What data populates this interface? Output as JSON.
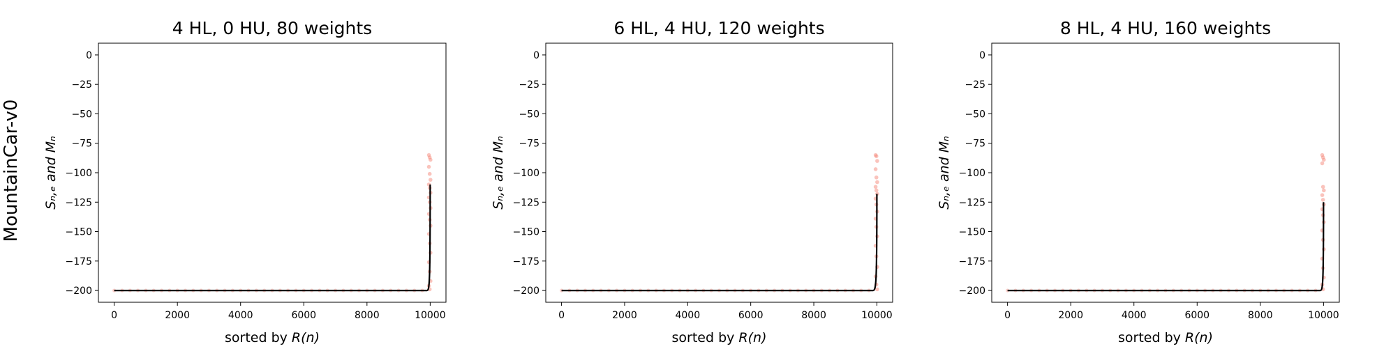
{
  "figure": {
    "row_label": "MountainCar-v0"
  },
  "chart_data": [
    {
      "type": "scatter",
      "title": "4 HL, 0 HU, 80 weights",
      "xlabel_prefix": "sorted by ",
      "xlabel_italic": "R(n)",
      "ylabel": "Sₙ,ₑ and Mₙ",
      "xlim": [
        -500,
        10500
      ],
      "ylim": [
        -210,
        10
      ],
      "xticks": [
        0,
        2000,
        4000,
        6000,
        8000,
        10000
      ],
      "yticks": [
        0,
        -25,
        -50,
        -75,
        -100,
        -125,
        -150,
        -175,
        -200
      ],
      "baseline": -200,
      "rise_start_x": 9900,
      "line_end": [
        10000,
        -110
      ],
      "outlier_values": [
        -85,
        -87,
        -89,
        -95,
        -101,
        -106,
        -110,
        -113,
        -117,
        -121,
        -125,
        -130,
        -135,
        -140,
        -145,
        -152,
        -160,
        -168,
        -176,
        -184,
        -192,
        -196,
        -199
      ],
      "colors": {
        "line": "#000000",
        "points": "#f4796b"
      }
    },
    {
      "type": "scatter",
      "title": "6 HL, 4 HU, 120 weights",
      "xlabel_prefix": "sorted by ",
      "xlabel_italic": "R(n)",
      "ylabel": "Sₙ,ₑ and Mₙ",
      "xlim": [
        -500,
        10500
      ],
      "ylim": [
        -210,
        10
      ],
      "xticks": [
        0,
        2000,
        4000,
        6000,
        8000,
        10000
      ],
      "yticks": [
        0,
        -25,
        -50,
        -75,
        -100,
        -125,
        -150,
        -175,
        -200
      ],
      "baseline": -200,
      "rise_start_x": 9880,
      "line_end": [
        10000,
        -118
      ],
      "outlier_values": [
        -85,
        -86,
        -90,
        -97,
        -104,
        -108,
        -112,
        -115,
        -118,
        -122,
        -127,
        -133,
        -139,
        -146,
        -154,
        -162,
        -171,
        -180,
        -188,
        -195,
        -199
      ],
      "colors": {
        "line": "#000000",
        "points": "#f4796b"
      }
    },
    {
      "type": "scatter",
      "title": "8 HL, 4 HU, 160 weights",
      "xlabel_prefix": "sorted by ",
      "xlabel_italic": "R(n)",
      "ylabel": "Sₙ,ₑ and Mₙ",
      "xlim": [
        -500,
        10500
      ],
      "ylim": [
        -210,
        10
      ],
      "xticks": [
        0,
        2000,
        4000,
        6000,
        8000,
        10000
      ],
      "yticks": [
        0,
        -25,
        -50,
        -75,
        -100,
        -125,
        -150,
        -175,
        -200
      ],
      "baseline": -200,
      "rise_start_x": 9900,
      "line_end": [
        10000,
        -125
      ],
      "outlier_values": [
        -85,
        -87,
        -89,
        -92,
        -112,
        -115,
        -119,
        -123,
        -127,
        -131,
        -136,
        -142,
        -149,
        -157,
        -165,
        -173,
        -181,
        -189,
        -195,
        -199
      ],
      "colors": {
        "line": "#000000",
        "points": "#f4796b"
      }
    }
  ]
}
